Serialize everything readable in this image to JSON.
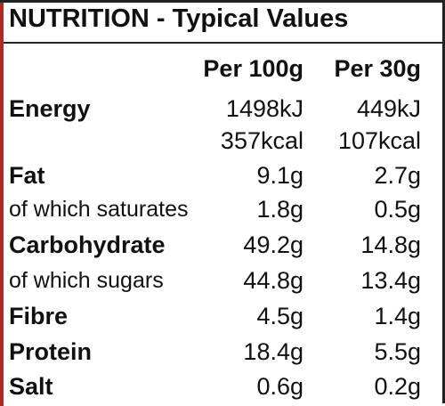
{
  "title": "NUTRITION - Typical Values",
  "columns": [
    "Per 100g",
    "Per 30g"
  ],
  "rows": [
    {
      "label": "Energy",
      "bold": true,
      "values": [
        "1498kJ",
        "449kJ"
      ]
    },
    {
      "values": [
        "357kcal",
        "107kcal"
      ]
    },
    {
      "label": "Fat",
      "bold": true,
      "values": [
        "9.1g",
        "2.7g"
      ]
    },
    {
      "label": "of which saturates",
      "bold": false,
      "values": [
        "1.8g",
        "0.5g"
      ]
    },
    {
      "label": "Carbohydrate",
      "bold": true,
      "values": [
        "49.2g",
        "14.8g"
      ]
    },
    {
      "label": "of which sugars",
      "bold": false,
      "values": [
        "44.8g",
        "13.4g"
      ]
    },
    {
      "label": "Fibre",
      "bold": true,
      "values": [
        "4.5g",
        "1.4g"
      ]
    },
    {
      "label": "Protein",
      "bold": true,
      "values": [
        "18.4g",
        "5.5g"
      ]
    },
    {
      "label": "Salt",
      "bold": true,
      "values": [
        "0.6g",
        "0.2g"
      ]
    }
  ]
}
